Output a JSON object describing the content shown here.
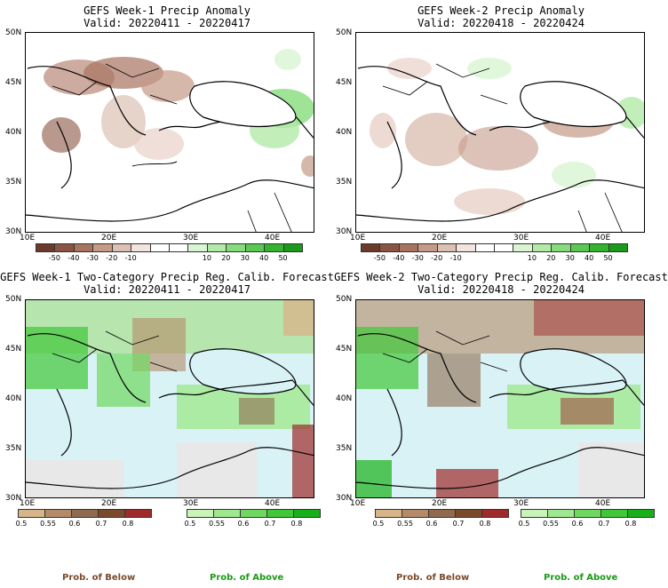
{
  "panels": [
    {
      "title": "GEFS Week-1 Precip Anomaly",
      "valid": "Valid: 20220411 - 20220417"
    },
    {
      "title": "GEFS Week-2 Precip Anomaly",
      "valid": "Valid: 20220418 - 20220424"
    },
    {
      "title": "GEFS Week-1 Two-Category Precip Reg. Calib. Forecast",
      "valid": "Valid: 20220411 - 20220417"
    },
    {
      "title": "GEFS Week-2 Two-Category Precip Reg. Calib. Forecast",
      "valid": "Valid: 20220418 - 20220424"
    }
  ],
  "lat_ticks": [
    "50N",
    "45N",
    "40N",
    "35N",
    "30N"
  ],
  "lon_ticks": [
    "10E",
    "20E",
    "30E",
    "40E"
  ],
  "anomaly_colorbar": {
    "labels": [
      "-50",
      "-40",
      "-30",
      "-20",
      "-10",
      "10",
      "20",
      "30",
      "40",
      "50"
    ],
    "colors": [
      "#6b3a2a",
      "#8a5443",
      "#a8735f",
      "#c49a88",
      "#dcc0b4",
      "#f2e4de",
      "#ffffff",
      "#ffffff",
      "#d9f5d3",
      "#b2eaa8",
      "#86dc7c",
      "#5cc854",
      "#33b32e",
      "#1a9a18"
    ]
  },
  "prob_colorbar": {
    "below_labels": [
      "0.5",
      "0.55",
      "0.6",
      "0.7",
      "0.8"
    ],
    "above_labels": [
      "0.5",
      "0.55",
      "0.6",
      "0.7",
      "0.8"
    ],
    "below_colors": [
      "#d8b48a",
      "#b58a68",
      "#8f6a4e",
      "#7a4a2c",
      "#a02a2a"
    ],
    "above_colors": [
      "#c8f4b8",
      "#a0e890",
      "#70d860",
      "#40c838",
      "#18b018"
    ],
    "below_title": "Prob. of Below",
    "above_title": "Prob. of Above",
    "below_color": "#7a4a2c",
    "above_color": "#1a9a18"
  }
}
